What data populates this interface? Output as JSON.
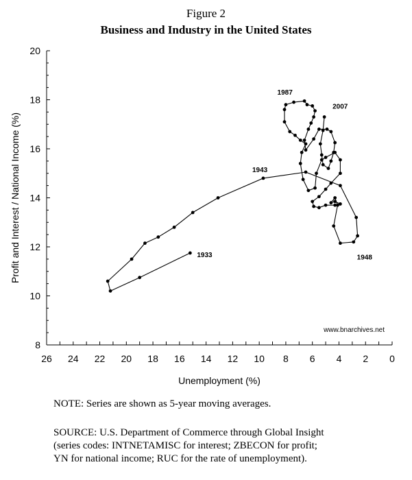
{
  "figure": {
    "label": "Figure 2",
    "title": "Business and Industry in the United States",
    "note": "NOTE: Series are shown as 5-year moving averages.",
    "source_lines": [
      "SOURCE: U.S. Department of Commerce through Global Insight",
      "(series codes: INTNETAMISC for interest; ZBECON for profit;",
      "YN for national income; RUC for the rate of unemployment)."
    ]
  },
  "chart_data": {
    "type": "line",
    "title": "Business and Industry in the United States",
    "xlabel": "Unemployment (%)",
    "ylabel": "Profit and Interest / National Income (%)",
    "xlim": [
      26,
      0
    ],
    "ylim": [
      8,
      20
    ],
    "x_reversed": true,
    "x_ticks": [
      26,
      24,
      22,
      20,
      18,
      16,
      14,
      12,
      10,
      8,
      6,
      4,
      2,
      0
    ],
    "y_ticks": [
      8,
      10,
      12,
      14,
      16,
      18,
      20
    ],
    "grid": false,
    "source_credit": "www.bnarchives.net",
    "series": [
      {
        "name": "Profit and Interest / National Income vs Unemployment (5-year moving averages)",
        "markers": true,
        "points": [
          [
            15.2,
            11.75
          ],
          [
            19.0,
            10.75
          ],
          [
            21.2,
            10.2
          ],
          [
            21.4,
            10.6
          ],
          [
            19.6,
            11.5
          ],
          [
            18.6,
            12.15
          ],
          [
            17.6,
            12.4
          ],
          [
            16.4,
            12.8
          ],
          [
            15.0,
            13.4
          ],
          [
            13.1,
            14.0
          ],
          [
            9.7,
            14.8
          ],
          [
            6.5,
            15.05
          ],
          [
            3.9,
            14.5
          ],
          [
            2.7,
            13.2
          ],
          [
            2.6,
            12.45
          ],
          [
            2.9,
            12.2
          ],
          [
            3.9,
            12.15
          ],
          [
            4.4,
            12.85
          ],
          [
            4.1,
            13.7
          ],
          [
            4.3,
            14.0
          ],
          [
            4.6,
            13.8
          ],
          [
            4.3,
            13.85
          ],
          [
            3.9,
            13.75
          ],
          [
            4.3,
            13.7
          ],
          [
            5.0,
            13.7
          ],
          [
            5.5,
            13.6
          ],
          [
            5.9,
            13.65
          ],
          [
            6.0,
            13.85
          ],
          [
            5.5,
            14.05
          ],
          [
            5.0,
            14.35
          ],
          [
            4.6,
            14.6
          ],
          [
            3.9,
            15.0
          ],
          [
            3.9,
            15.55
          ],
          [
            4.3,
            15.85
          ],
          [
            5.0,
            15.65
          ],
          [
            5.3,
            15.55
          ],
          [
            5.7,
            15.0
          ],
          [
            5.8,
            14.4
          ],
          [
            6.3,
            14.3
          ],
          [
            6.7,
            14.75
          ],
          [
            6.9,
            15.4
          ],
          [
            6.8,
            15.85
          ],
          [
            6.5,
            16.2
          ],
          [
            6.9,
            16.35
          ],
          [
            7.3,
            16.55
          ],
          [
            7.7,
            16.7
          ],
          [
            8.1,
            17.1
          ],
          [
            8.1,
            17.6
          ],
          [
            8.0,
            17.8
          ],
          [
            7.4,
            17.9
          ],
          [
            6.6,
            17.95
          ],
          [
            6.4,
            17.8
          ],
          [
            6.0,
            17.75
          ],
          [
            5.8,
            17.55
          ],
          [
            5.9,
            17.3
          ],
          [
            6.1,
            17.05
          ],
          [
            6.3,
            16.8
          ],
          [
            6.6,
            16.35
          ],
          [
            6.5,
            15.95
          ],
          [
            5.9,
            16.4
          ],
          [
            5.5,
            16.8
          ],
          [
            4.9,
            16.8
          ],
          [
            4.6,
            16.7
          ],
          [
            4.3,
            16.25
          ],
          [
            4.4,
            15.85
          ],
          [
            4.6,
            15.5
          ],
          [
            4.8,
            15.2
          ],
          [
            5.2,
            15.35
          ],
          [
            5.3,
            15.75
          ],
          [
            5.4,
            16.2
          ],
          [
            5.2,
            16.75
          ],
          [
            5.1,
            17.3
          ]
        ],
        "labels": [
          {
            "text": "1933",
            "x": 15.2,
            "y": 11.75
          },
          {
            "text": "1943",
            "x": 9.7,
            "y": 14.8
          },
          {
            "text": "1948",
            "x": 2.7,
            "y": 12.15
          },
          {
            "text": "1987",
            "x": 7.4,
            "y": 17.9
          },
          {
            "text": "2007",
            "x": 5.1,
            "y": 17.3
          }
        ]
      }
    ]
  }
}
